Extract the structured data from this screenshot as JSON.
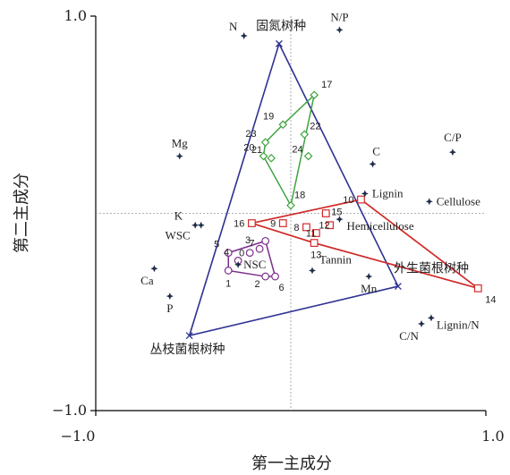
{
  "chart_data": {
    "type": "scatter",
    "xlabel": "第一主成分",
    "ylabel": "第二主成分",
    "xlim": [
      -1.0,
      1.0
    ],
    "ylim": [
      -1.0,
      1.0
    ],
    "x_ticks": [
      "−1.0",
      "1.0"
    ],
    "y_ticks": [
      "1.0",
      "−1.0"
    ],
    "variables": [
      {
        "label": "N",
        "x": -0.24,
        "y": 0.9
      },
      {
        "label": "N/P",
        "x": 0.25,
        "y": 0.93
      },
      {
        "label": "Mg",
        "x": -0.57,
        "y": 0.29
      },
      {
        "label": "C/P",
        "x": 0.83,
        "y": 0.31
      },
      {
        "label": "C",
        "x": 0.42,
        "y": 0.25
      },
      {
        "label": "Lignin",
        "x": 0.38,
        "y": 0.1
      },
      {
        "label": "Cellulose",
        "x": 0.71,
        "y": 0.06
      },
      {
        "label": "K",
        "x": -0.49,
        "y": -0.06
      },
      {
        "label": "WSC",
        "x": -0.46,
        "y": -0.06
      },
      {
        "label": "Hemicellulose",
        "x": 0.25,
        "y": -0.03
      },
      {
        "label": "NSC",
        "x": -0.27,
        "y": -0.26
      },
      {
        "label": "Tannin",
        "x": 0.11,
        "y": -0.29
      },
      {
        "label": "Ca",
        "x": -0.7,
        "y": -0.28
      },
      {
        "label": "Mn",
        "x": 0.4,
        "y": -0.32
      },
      {
        "label": "P",
        "x": -0.62,
        "y": -0.42
      },
      {
        "label": "C/N",
        "x": 0.67,
        "y": -0.56
      },
      {
        "label": "Lignin/N",
        "x": 0.72,
        "y": -0.53
      }
    ],
    "hulls": [
      {
        "name": "固氮树种",
        "color": "#2e3192",
        "vertices": [
          [
            -0.06,
            0.86
          ],
          [
            0.55,
            -0.37
          ],
          [
            -0.52,
            -0.62
          ]
        ]
      },
      {
        "name": "外生菌根树种",
        "color": "#d12b2b",
        "vertices": [
          [
            -0.2,
            -0.05
          ],
          [
            0.36,
            0.07
          ],
          [
            0.96,
            -0.38
          ],
          [
            0.12,
            -0.15
          ]
        ]
      },
      {
        "name": "丛枝菌根树种",
        "color": "#2e3192",
        "vertices": []
      }
    ],
    "group_labels": [
      {
        "label": "固氮树种",
        "x": -0.05,
        "y": 0.93
      },
      {
        "label": "外生菌根树种",
        "x": 0.72,
        "y": -0.3
      },
      {
        "label": "丛枝菌根树种",
        "x": -0.53,
        "y": -0.71
      }
    ],
    "site_groups": [
      {
        "color": "#3fa33f",
        "marker": "diamond",
        "points": [
          {
            "id": "17",
            "x": 0.12,
            "y": 0.6
          },
          {
            "id": "19",
            "x": -0.04,
            "y": 0.45
          },
          {
            "id": "22",
            "x": 0.07,
            "y": 0.4
          },
          {
            "id": "23",
            "x": -0.13,
            "y": 0.36
          },
          {
            "id": "20",
            "x": -0.14,
            "y": 0.29
          },
          {
            "id": "21",
            "x": -0.1,
            "y": 0.28
          },
          {
            "id": "24",
            "x": 0.09,
            "y": 0.29
          },
          {
            "id": "18",
            "x": 0.0,
            "y": 0.04
          }
        ],
        "hull": [
          "17",
          "18",
          "20",
          "23",
          "19"
        ]
      },
      {
        "color": "#d12b2b",
        "marker": "square",
        "points": [
          {
            "id": "10",
            "x": 0.36,
            "y": 0.07
          },
          {
            "id": "16",
            "x": -0.2,
            "y": -0.05
          },
          {
            "id": "9",
            "x": -0.04,
            "y": -0.05
          },
          {
            "id": "15",
            "x": 0.18,
            "y": 0.0
          },
          {
            "id": "12",
            "x": 0.2,
            "y": -0.06
          },
          {
            "id": "8",
            "x": 0.08,
            "y": -0.07
          },
          {
            "id": "11",
            "x": 0.13,
            "y": -0.1
          },
          {
            "id": "13",
            "x": 0.12,
            "y": -0.15
          },
          {
            "id": "14",
            "x": 0.96,
            "y": -0.38
          }
        ],
        "hull": [
          "16",
          "10",
          "14",
          "13"
        ]
      },
      {
        "color": "#7b2d8e",
        "marker": "circle",
        "points": [
          {
            "id": "7",
            "x": -0.13,
            "y": -0.14
          },
          {
            "id": "3",
            "x": -0.16,
            "y": -0.18
          },
          {
            "id": "0",
            "x": -0.21,
            "y": -0.2
          },
          {
            "id": "5",
            "x": -0.32,
            "y": -0.2
          },
          {
            "id": "4",
            "x": -0.27,
            "y": -0.24
          },
          {
            "id": "1",
            "x": -0.32,
            "y": -0.29
          },
          {
            "id": "2",
            "x": -0.13,
            "y": -0.32
          },
          {
            "id": "6",
            "x": -0.08,
            "y": -0.32
          }
        ],
        "hull": [
          "7",
          "6",
          "2",
          "1",
          "5"
        ]
      }
    ]
  }
}
